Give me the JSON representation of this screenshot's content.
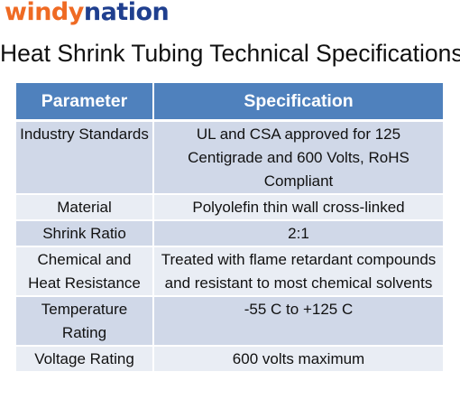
{
  "logo": {
    "part1": "windy",
    "part2": "nation"
  },
  "title": "Heat Shrink Tubing Technical Specifications",
  "table": {
    "headers": [
      "Parameter",
      "Specification"
    ],
    "rows": [
      {
        "parameter": "Industry Standards",
        "specification": "UL and CSA approved for 125 Centigrade and 600 Volts, RoHS Compliant"
      },
      {
        "parameter": "Material",
        "specification": "Polyolefin thin wall cross-linked"
      },
      {
        "parameter": "Shrink Ratio",
        "specification": "2:1"
      },
      {
        "parameter": "Chemical and Heat Resistance",
        "specification": "Treated with flame retardant compounds and resistant to most chemical solvents"
      },
      {
        "parameter": "Temperature Rating",
        "specification": "-55 C to +125 C"
      },
      {
        "parameter": "Voltage Rating",
        "specification": "600 volts maximum"
      }
    ]
  },
  "colors": {
    "header_bg": "#4f81bd",
    "row_odd": "#d0d8e8",
    "row_even": "#e9edf4",
    "logo_orange": "#ef6a23",
    "logo_blue": "#1f3f8f"
  }
}
